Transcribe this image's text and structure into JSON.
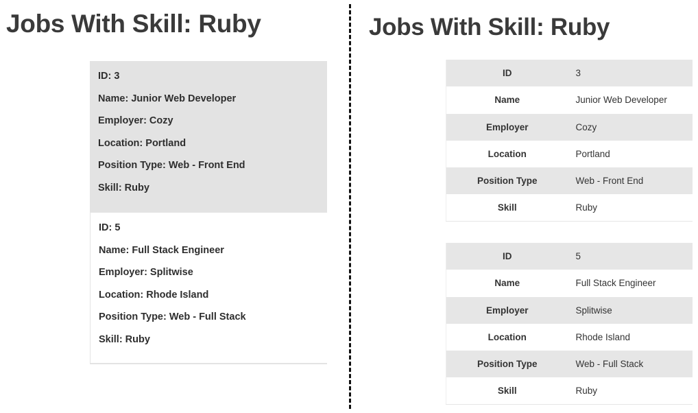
{
  "left": {
    "title": "Jobs With Skill: Ruby",
    "jobs": [
      {
        "lines": [
          "ID: 3",
          "Name: Junior Web Developer",
          "Employer: Cozy",
          "Location: Portland",
          "Position Type: Web - Front End",
          "Skill: Ruby"
        ]
      },
      {
        "lines": [
          "ID: 5",
          "Name: Full Stack Engineer",
          "Employer: Splitwise",
          "Location: Rhode Island",
          "Position Type: Web - Full Stack",
          "Skill: Ruby"
        ]
      }
    ]
  },
  "right": {
    "title": "Jobs With Skill: Ruby",
    "tables": [
      {
        "rows": [
          {
            "key": "ID",
            "value": "3"
          },
          {
            "key": "Name",
            "value": "Junior Web Developer"
          },
          {
            "key": "Employer",
            "value": "Cozy"
          },
          {
            "key": "Location",
            "value": "Portland"
          },
          {
            "key": "Position Type",
            "value": "Web - Front End"
          },
          {
            "key": "Skill",
            "value": "Ruby"
          }
        ]
      },
      {
        "rows": [
          {
            "key": "ID",
            "value": "5"
          },
          {
            "key": "Name",
            "value": "Full Stack Engineer"
          },
          {
            "key": "Employer",
            "value": "Splitwise"
          },
          {
            "key": "Location",
            "value": "Rhode Island"
          },
          {
            "key": "Position Type",
            "value": "Web - Full Stack"
          },
          {
            "key": "Skill",
            "value": "Ruby"
          }
        ]
      }
    ]
  },
  "colors": {
    "shaded_row": "#e6e6e6",
    "divider": "#111111",
    "title_text": "#3a3a3a"
  }
}
